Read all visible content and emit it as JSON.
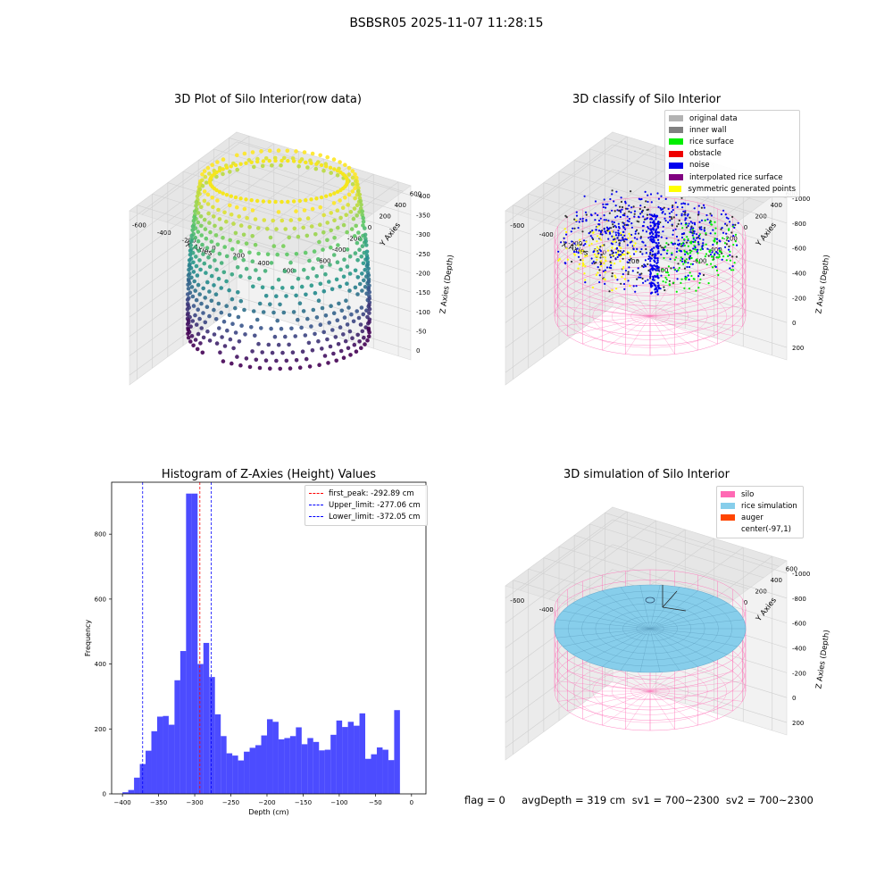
{
  "suptitle": "BSBSR05 2025-11-07 11:28:15",
  "panels": {
    "raw": {
      "title": "3D Plot of Silo Interior(row data)",
      "x_ticks": [
        "-600",
        "-400",
        "-200",
        "0",
        "200",
        "400",
        "600"
      ],
      "y_ticks": [
        "-600",
        "-400",
        "-200",
        "0",
        "200",
        "400",
        "600"
      ],
      "z_ticks": [
        "0",
        "-50",
        "-100",
        "-150",
        "-200",
        "-250",
        "-300",
        "-350",
        "-400"
      ],
      "x_label": "X Axies",
      "y_label": "Y Axies",
      "z_label": "Z Axies (Depth)"
    },
    "classify": {
      "title": "3D classify of Silo Interior",
      "legend": [
        {
          "label": "original data",
          "color": "#b3b3b3"
        },
        {
          "label": "inner wall",
          "color": "#808080"
        },
        {
          "label": "rice surface",
          "color": "#00ee00"
        },
        {
          "label": "obstacle",
          "color": "#ee0000"
        },
        {
          "label": "noise",
          "color": "#0000ee"
        },
        {
          "label": "interpolated rice surface",
          "color": "#800080"
        },
        {
          "label": "symmetric generated points",
          "color": "#ffff00"
        }
      ],
      "x_ticks": [
        "-600",
        "-400",
        "-200",
        "0",
        "200",
        "400"
      ],
      "y_ticks": [
        "-600",
        "-400",
        "-200",
        "0",
        "200",
        "400",
        "600"
      ],
      "z_ticks": [
        "200",
        "0",
        "-200",
        "-400",
        "-600",
        "-800",
        "-1000"
      ],
      "x_label": "X Axies",
      "y_label": "Y Axies",
      "z_label": "Z Axies (Depth)"
    },
    "sim": {
      "title": "3D simulation of Silo Interior",
      "legend": [
        {
          "label": "silo",
          "color": "#ff69b4"
        },
        {
          "label": "rice simulation",
          "color": "#87ceeb"
        },
        {
          "label": "auger",
          "color": "#ff4500"
        },
        {
          "label": "center(-97,1)",
          "color": "#ffffff"
        }
      ],
      "x_ticks": [
        "-600",
        "-400",
        "-200",
        "0",
        "200",
        "400"
      ],
      "y_ticks": [
        "-600",
        "-400",
        "-200",
        "0",
        "200",
        "400",
        "600"
      ],
      "z_ticks": [
        "200",
        "0",
        "-200",
        "-400",
        "-600",
        "-800",
        "-1000"
      ],
      "x_label": "X Axies",
      "y_label": "Y Axies",
      "z_label": "Z Axies (Depth)"
    }
  },
  "footer": "flag = 0     avgDepth = 319 cm  sv1 = 700~2300  sv2 = 700~2300",
  "chart_data": [
    {
      "type": "bar",
      "title": "Histogram of Z-Axies (Height) Values",
      "xlabel": "Depth (cm)",
      "ylabel": "Frequency",
      "xlim": [
        -415,
        20
      ],
      "ylim": [
        0,
        960
      ],
      "x_ticks": [
        -400,
        -350,
        -300,
        -250,
        -200,
        -150,
        -100,
        -50,
        0
      ],
      "y_ticks": [
        0,
        200,
        400,
        600,
        800
      ],
      "bin_start": -400,
      "bin_width": 8,
      "bar_color": "#0000ff",
      "values": [
        5,
        12,
        50,
        92,
        133,
        193,
        238,
        240,
        213,
        350,
        440,
        925,
        925,
        400,
        465,
        360,
        245,
        178,
        125,
        118,
        103,
        130,
        142,
        150,
        180,
        230,
        222,
        168,
        172,
        178,
        205,
        153,
        172,
        160,
        134,
        136,
        182,
        226,
        206,
        222,
        210,
        248,
        108,
        122,
        143,
        136,
        104,
        258
      ],
      "vlines": [
        {
          "label": "first_peak: -292.89 cm",
          "value": -292.89,
          "color": "#ff0000"
        },
        {
          "label": "Upper_limit: -277.06 cm",
          "value": -277.06,
          "color": "#0000ff"
        },
        {
          "label": "Lower_limit: -372.05 cm",
          "value": -372.05,
          "color": "#0000ff"
        }
      ],
      "legend_position": "top-right"
    }
  ]
}
